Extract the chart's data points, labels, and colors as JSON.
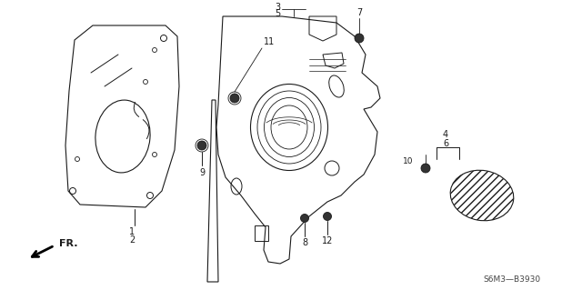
{
  "bg_color": "#ffffff",
  "line_color": "#1a1a1a",
  "text_color": "#1a1a1a",
  "diagram_code": "S6M3—B3930",
  "fr_label": "FR.",
  "figsize": [
    6.4,
    3.19
  ],
  "dpi": 100,
  "xlim": [
    0,
    640
  ],
  "ylim": [
    0,
    319
  ]
}
